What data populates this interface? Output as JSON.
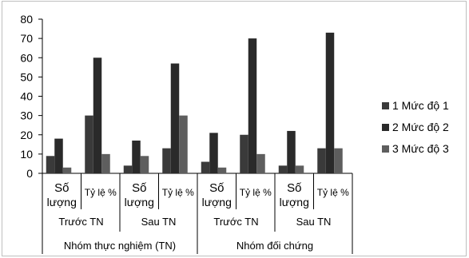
{
  "chart_data": {
    "type": "bar",
    "ylim": [
      0,
      80
    ],
    "yticks": [
      0,
      10,
      20,
      30,
      40,
      50,
      60,
      70,
      80
    ],
    "group_labels": [
      "Nhóm thực nghiệm (TN)",
      "Nhóm đối chứng"
    ],
    "subgroup_labels": [
      "Trước TN",
      "Sau TN",
      "Trước TN",
      "Sau TN"
    ],
    "category_labels": [
      [
        "Số",
        "lượng"
      ],
      [
        "Tỷ lệ %"
      ],
      [
        "Số",
        "lượng"
      ],
      [
        "Tỷ lệ %"
      ],
      [
        "Số",
        "lượng"
      ],
      [
        "Tỷ lệ %"
      ],
      [
        "Số",
        "lượng"
      ],
      [
        "Tỷ lệ %"
      ]
    ],
    "series": [
      {
        "name": "1 Mức độ 1",
        "color": "#3a3a3a",
        "values": [
          9,
          30,
          4,
          13,
          6,
          20,
          4,
          13
        ]
      },
      {
        "name": "2 Mức độ 2",
        "color": "#2a2a2a",
        "values": [
          18,
          60,
          17,
          57,
          21,
          70,
          22,
          73
        ]
      },
      {
        "name": "3 Mức độ 3",
        "color": "#5e5e5e",
        "values": [
          3,
          10,
          9,
          30,
          3,
          10,
          4,
          13
        ]
      }
    ],
    "grid": false,
    "legend_position": "right"
  }
}
